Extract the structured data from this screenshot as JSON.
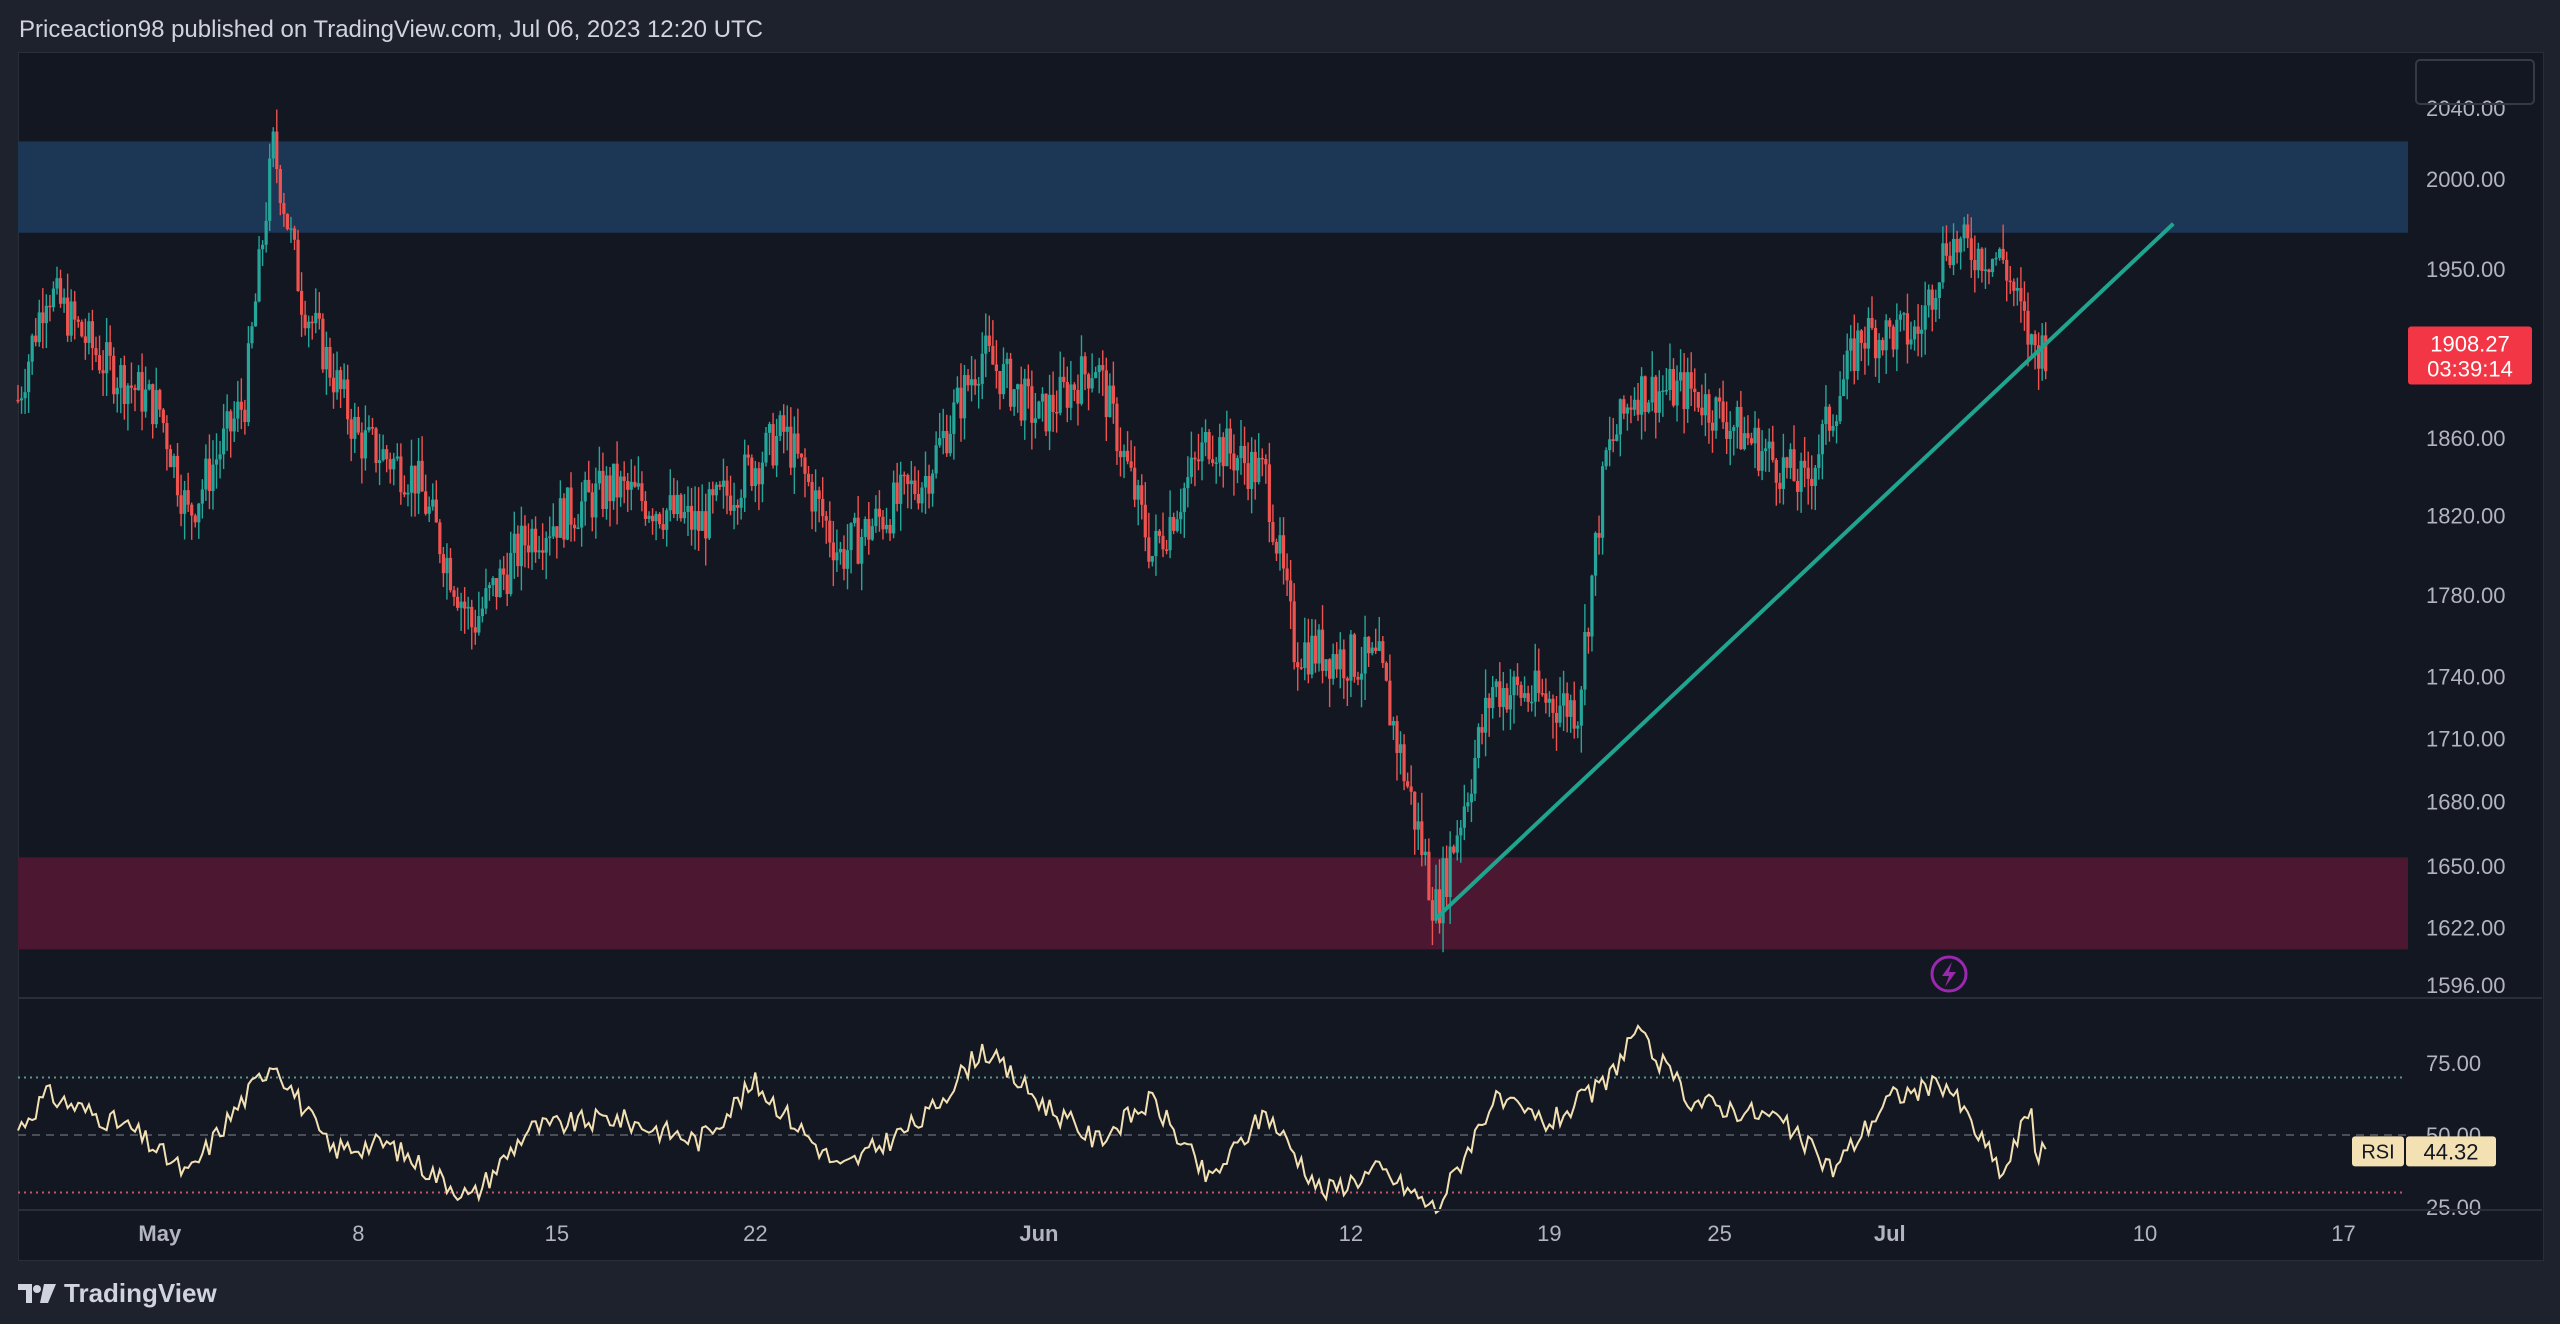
{
  "header": {
    "publish_info": "Priceaction98 published on TradingView.com, Jul 06, 2023 12:20 UTC"
  },
  "footer": {
    "brand": "TradingView"
  },
  "colors": {
    "up": "#26a69a",
    "down": "#ef5350",
    "background": "#131722",
    "trendline": "#1fa58f",
    "supply_zone": "#1c3656",
    "demand_zone": "#4c1831",
    "rsi_line": "#f3e1b4",
    "last_price_bg": "#f23645"
  },
  "price_axis": {
    "ticks": [
      "2040.00",
      "2000.00",
      "1950.00",
      "1860.00",
      "1820.00",
      "1780.00",
      "1740.00",
      "1710.00",
      "1680.00",
      "1650.00",
      "1622.00",
      "1596.00"
    ],
    "last_price": "1908.27",
    "countdown": "03:39:14"
  },
  "rsi": {
    "label": "RSI",
    "value": "44.32",
    "ticks": [
      "75.00",
      "50.00",
      "25.00"
    ],
    "upper_band": 70,
    "lower_band": 30
  },
  "time_axis": {
    "labels": [
      "May",
      "8",
      "15",
      "22",
      "Jun",
      "12",
      "19",
      "25",
      "Jul",
      "10",
      "17"
    ]
  },
  "zones": {
    "supply": {
      "from": 1970,
      "to": 2021
    },
    "demand": {
      "from": 1612,
      "to": 1654
    }
  },
  "trendline": {
    "start": {
      "date": "2023-06-15",
      "price": 1626
    },
    "end": {
      "date": "2023-07-11",
      "price": 1975
    }
  },
  "icons": {
    "alert": "lightning-icon"
  },
  "chart_data": {
    "type": "candlestick",
    "title": "",
    "interval": "1H",
    "x_range": [
      "2023-04-26",
      "2023-07-24"
    ],
    "y_range": [
      1596,
      2040
    ],
    "y_scale": "log",
    "key_points": [
      {
        "date": "2023-04-26",
        "price": 1880
      },
      {
        "date": "2023-04-27",
        "price": 1940
      },
      {
        "date": "2023-04-29",
        "price": 1900
      },
      {
        "date": "2023-05-01",
        "price": 1875
      },
      {
        "date": "2023-05-02",
        "price": 1820
      },
      {
        "date": "2023-05-04",
        "price": 1880
      },
      {
        "date": "2023-05-05",
        "price": 2018
      },
      {
        "date": "2023-05-06",
        "price": 1935
      },
      {
        "date": "2023-05-08",
        "price": 1860
      },
      {
        "date": "2023-05-10",
        "price": 1840
      },
      {
        "date": "2023-05-12",
        "price": 1765
      },
      {
        "date": "2023-05-14",
        "price": 1810
      },
      {
        "date": "2023-05-17",
        "price": 1835
      },
      {
        "date": "2023-05-20",
        "price": 1815
      },
      {
        "date": "2023-05-23",
        "price": 1863
      },
      {
        "date": "2023-05-25",
        "price": 1800
      },
      {
        "date": "2023-05-28",
        "price": 1840
      },
      {
        "date": "2023-05-30",
        "price": 1905
      },
      {
        "date": "2023-06-01",
        "price": 1870
      },
      {
        "date": "2023-06-03",
        "price": 1900
      },
      {
        "date": "2023-06-05",
        "price": 1800
      },
      {
        "date": "2023-06-07",
        "price": 1860
      },
      {
        "date": "2023-06-09",
        "price": 1840
      },
      {
        "date": "2023-06-10",
        "price": 1755
      },
      {
        "date": "2023-06-13",
        "price": 1745
      },
      {
        "date": "2023-06-15",
        "price": 1630
      },
      {
        "date": "2023-06-16",
        "price": 1680
      },
      {
        "date": "2023-06-17",
        "price": 1735
      },
      {
        "date": "2023-06-20",
        "price": 1725
      },
      {
        "date": "2023-06-21",
        "price": 1850
      },
      {
        "date": "2023-06-22",
        "price": 1885
      },
      {
        "date": "2023-06-24",
        "price": 1885
      },
      {
        "date": "2023-06-28",
        "price": 1835
      },
      {
        "date": "2023-06-30",
        "price": 1915
      },
      {
        "date": "2023-07-02",
        "price": 1915
      },
      {
        "date": "2023-07-03",
        "price": 1965
      },
      {
        "date": "2023-07-05",
        "price": 1955
      },
      {
        "date": "2023-07-06",
        "price": 1908
      }
    ],
    "rsi_points": [
      {
        "date": "2023-04-26",
        "value": 52
      },
      {
        "date": "2023-04-27",
        "value": 64
      },
      {
        "date": "2023-04-30",
        "value": 52
      },
      {
        "date": "2023-05-02",
        "value": 36
      },
      {
        "date": "2023-05-03",
        "value": 50
      },
      {
        "date": "2023-05-05",
        "value": 76
      },
      {
        "date": "2023-05-07",
        "value": 45
      },
      {
        "date": "2023-05-09",
        "value": 47
      },
      {
        "date": "2023-05-12",
        "value": 28
      },
      {
        "date": "2023-05-14",
        "value": 52
      },
      {
        "date": "2023-05-17",
        "value": 56
      },
      {
        "date": "2023-05-20",
        "value": 48
      },
      {
        "date": "2023-05-22",
        "value": 68
      },
      {
        "date": "2023-05-25",
        "value": 38
      },
      {
        "date": "2023-05-28",
        "value": 56
      },
      {
        "date": "2023-05-30",
        "value": 80
      },
      {
        "date": "2023-06-01",
        "value": 62
      },
      {
        "date": "2023-06-03",
        "value": 48
      },
      {
        "date": "2023-06-05",
        "value": 62
      },
      {
        "date": "2023-06-07",
        "value": 34
      },
      {
        "date": "2023-06-09",
        "value": 58
      },
      {
        "date": "2023-06-11",
        "value": 30
      },
      {
        "date": "2023-06-13",
        "value": 38
      },
      {
        "date": "2023-06-15",
        "value": 24
      },
      {
        "date": "2023-06-17",
        "value": 62
      },
      {
        "date": "2023-06-19",
        "value": 54
      },
      {
        "date": "2023-06-21",
        "value": 68
      },
      {
        "date": "2023-06-22",
        "value": 86
      },
      {
        "date": "2023-06-24",
        "value": 62
      },
      {
        "date": "2023-06-27",
        "value": 56
      },
      {
        "date": "2023-06-29",
        "value": 38
      },
      {
        "date": "2023-07-01",
        "value": 63
      },
      {
        "date": "2023-07-03",
        "value": 68
      },
      {
        "date": "2023-07-05",
        "value": 36
      },
      {
        "date": "2023-07-06",
        "value": 61
      },
      {
        "date": "2023-07-06",
        "value": 44.32
      }
    ]
  }
}
